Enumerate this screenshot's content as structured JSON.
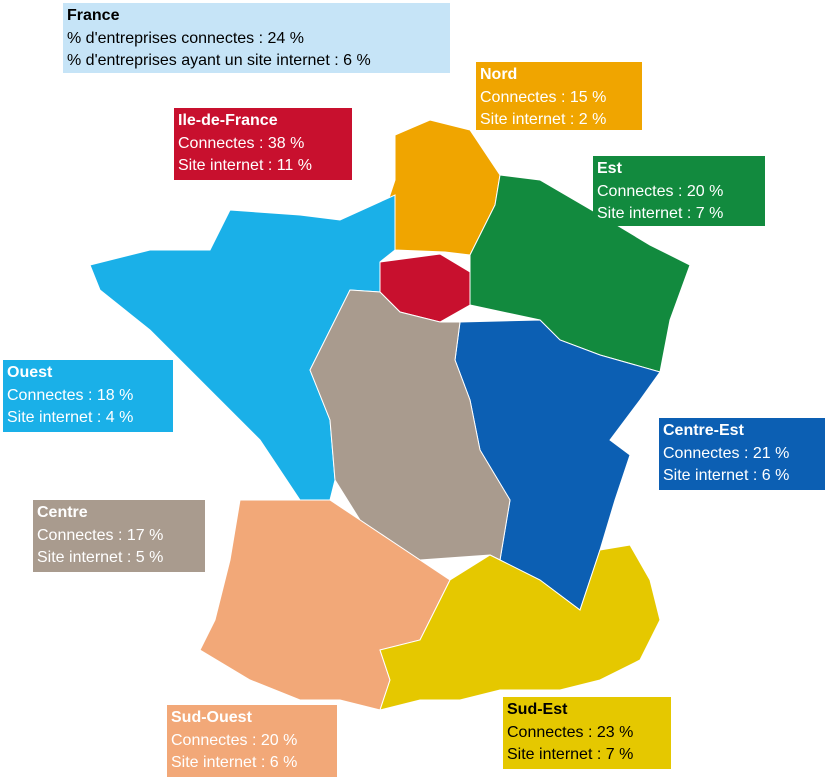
{
  "regions": [
    {
      "name": "France",
      "color": "#c6e4f7",
      "text_color": "#000000",
      "lines": [
        "% d'entreprises connectes : 24 %",
        "% d'entreprises ayant un site internet : 6 %"
      ]
    },
    {
      "name": "Nord",
      "color": "#f0a500",
      "text_color": "#ffffff",
      "lines": [
        "Connectes : 15 %",
        "Site internet :  2 %"
      ]
    },
    {
      "name": "Ile-de-France",
      "color": "#c8102e",
      "text_color": "#ffffff",
      "lines": [
        "Connectes :  38 %",
        "Site internet : 11 %"
      ]
    },
    {
      "name": "Est",
      "color": "#128a3e",
      "text_color": "#ffffff",
      "lines": [
        "Connectes : 20 %",
        "Site internet :  7 %"
      ]
    },
    {
      "name": "Ouest",
      "color": "#1ab0e8",
      "text_color": "#ffffff",
      "lines": [
        "Connectes : 18 %",
        "Site internet :  4 %"
      ]
    },
    {
      "name": "Centre-Est",
      "color": "#0c5fb3",
      "text_color": "#ffffff",
      "lines": [
        "Connectes : 21 %",
        "Site internet :  6 %"
      ]
    },
    {
      "name": "Centre",
      "color": "#a99b8e",
      "text_color": "#ffffff",
      "lines": [
        "Connectes : 17 %",
        "Site internet :  5 %"
      ]
    },
    {
      "name": "Sud-Ouest",
      "color": "#f2a878",
      "text_color": "#ffffff",
      "lines": [
        "Connectes : 20 %",
        "Site internet :  6 %"
      ]
    },
    {
      "name": "Sud-Est",
      "color": "#e5c800",
      "text_color": "#000000",
      "lines": [
        "Connectes : 23 %",
        "Site internet :  7 %"
      ]
    }
  ]
}
